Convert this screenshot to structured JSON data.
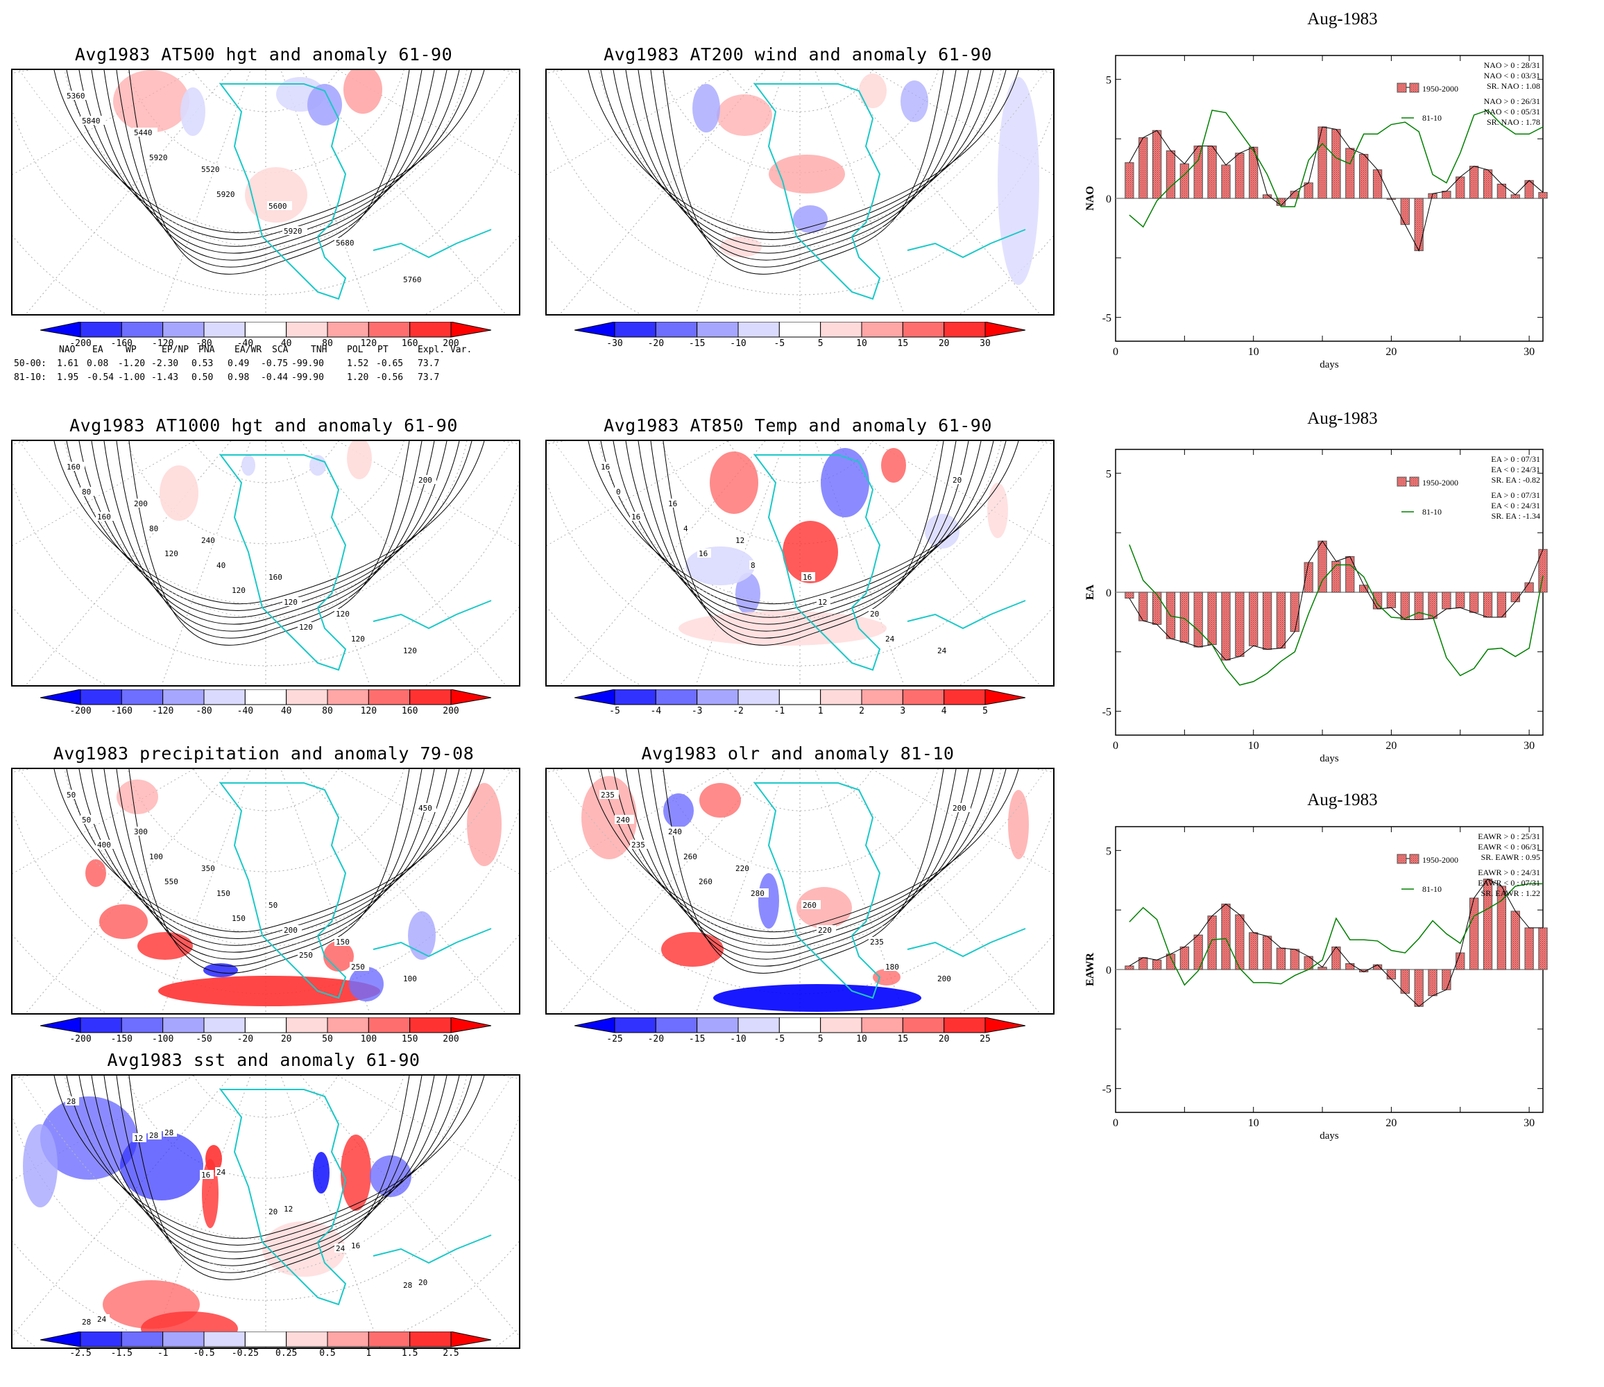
{
  "maps": [
    {
      "id": "z500",
      "title": "Avg1983 AT500 hgt and anomaly 61-90",
      "colorbar": [
        "-200",
        "-160",
        "-120",
        "-80",
        "-40",
        "40",
        "80",
        "120",
        "160",
        "200"
      ],
      "contour_labels": [
        "5360",
        "5440",
        "5520",
        "5600",
        "5680",
        "5760",
        "5840",
        "5920",
        "5920",
        "5920"
      ]
    },
    {
      "id": "wind200",
      "title": "Avg1983 AT200 wind and anomaly 61-90",
      "colorbar": [
        "-30",
        "-20",
        "-15",
        "-10",
        "-5",
        "5",
        "10",
        "15",
        "20",
        "30"
      ],
      "contour_labels": []
    },
    {
      "id": "z1000",
      "title": "Avg1983 AT1000 hgt and anomaly 61-90",
      "colorbar": [
        "-200",
        "-160",
        "-120",
        "-80",
        "-40",
        "40",
        "80",
        "120",
        "160",
        "200"
      ],
      "contour_labels": [
        "160",
        "200",
        "240",
        "160",
        "120",
        "120",
        "80",
        "80",
        "40",
        "120",
        "120",
        "200",
        "160",
        "120",
        "120",
        "120"
      ]
    },
    {
      "id": "t850",
      "title": "Avg1983 AT850 Temp and anomaly 61-90",
      "colorbar": [
        "-5",
        "-4",
        "-3",
        "-2",
        "-1",
        "1",
        "2",
        "3",
        "4",
        "5"
      ],
      "contour_labels": [
        "16",
        "16",
        "12",
        "16",
        "20",
        "24",
        "0",
        "4",
        "8",
        "12",
        "24",
        "20",
        "16",
        "16"
      ]
    },
    {
      "id": "precip",
      "title": "Avg1983 precipitation and anomaly 79-08",
      "colorbar": [
        "-200",
        "-150",
        "-100",
        "-50",
        "-20",
        "20",
        "50",
        "100",
        "150",
        "200"
      ],
      "contour_labels": [
        "50",
        "300",
        "350",
        "50",
        "150",
        "100",
        "50",
        "100",
        "150",
        "200",
        "250",
        "450",
        "400",
        "550",
        "150",
        "250"
      ]
    },
    {
      "id": "olr",
      "title": "Avg1983 olr and anomaly 81-10",
      "colorbar": [
        "-25",
        "-20",
        "-15",
        "-10",
        "-5",
        "5",
        "10",
        "15",
        "20",
        "25"
      ],
      "contour_labels": [
        "235",
        "240",
        "220",
        "260",
        "235",
        "200",
        "240",
        "260",
        "280",
        "220",
        "180",
        "200",
        "235",
        "260"
      ]
    },
    {
      "id": "sst",
      "title": "Avg1983 sst and anomaly 61-90",
      "colorbar": [
        "-2.5",
        "-1.5",
        "-1",
        "-0.5",
        "-0.25",
        "0.25",
        "0.5",
        "1",
        "1.5",
        "2.5"
      ],
      "contour_labels": [
        "28",
        "12",
        "16",
        "20",
        "24",
        "28",
        "28",
        "28",
        "24",
        "12",
        "16",
        "20",
        "24",
        "28"
      ]
    }
  ],
  "colorbar_colors": [
    "#0000ff",
    "#3232ff",
    "#6e6eff",
    "#a6a6ff",
    "#dadaff",
    "#ffffff",
    "#ffdada",
    "#ffa6a6",
    "#ff6e6e",
    "#ff3232",
    "#ff0000"
  ],
  "index_table": {
    "headers": [
      "NAO",
      "EA",
      "WP",
      "EP/NP",
      "PNA",
      "EA/WR",
      "SCA",
      "TNH",
      "POL",
      "PT",
      "Expl. Var."
    ],
    "rows": [
      {
        "label": "50-00:",
        "values": [
          "1.61",
          "0.08",
          "-1.20",
          "-2.30",
          "0.53",
          "0.49",
          "-0.75",
          "-99.90",
          "1.52",
          "-0.65",
          "73.7"
        ]
      },
      {
        "label": "81-10:",
        "values": [
          "1.95",
          "-0.54",
          "-1.00",
          "-1.43",
          "0.50",
          "0.98",
          "-0.44",
          "-99.90",
          "1.20",
          "-0.56",
          "73.7"
        ]
      }
    ]
  },
  "chart_data": [
    {
      "type": "bar",
      "title": "Aug-1983",
      "xlabel": "days",
      "ylabel": "NAO",
      "xlim": [
        0,
        31
      ],
      "ylim": [
        -6,
        6
      ],
      "xticks": [
        "0",
        "10",
        "20",
        "30"
      ],
      "yticks": [
        "5",
        "0",
        "-5"
      ],
      "x": [
        1,
        2,
        3,
        4,
        5,
        6,
        7,
        8,
        9,
        10,
        11,
        12,
        13,
        14,
        15,
        16,
        17,
        18,
        19,
        20,
        21,
        22,
        23,
        24,
        25,
        26,
        27,
        28,
        29,
        30,
        31
      ],
      "series": [
        {
          "name": "1950-2000",
          "kind": "bar",
          "values": [
            1.5,
            2.55,
            2.85,
            2.0,
            1.45,
            2.2,
            2.2,
            1.4,
            1.9,
            2.15,
            0.15,
            -0.3,
            0.3,
            0.65,
            3.0,
            2.9,
            2.1,
            1.85,
            1.2,
            0.0,
            -1.1,
            -2.2,
            0.2,
            0.3,
            0.9,
            1.35,
            1.2,
            0.6,
            0.15,
            0.75,
            0.25
          ]
        },
        {
          "name": "81-10",
          "kind": "line",
          "color": "#008000",
          "values": [
            -0.7,
            -1.2,
            -0.1,
            0.5,
            1.0,
            1.6,
            3.7,
            3.6,
            2.8,
            2.0,
            1.0,
            -0.35,
            -0.35,
            1.6,
            2.3,
            1.7,
            1.45,
            2.7,
            2.7,
            3.1,
            3.2,
            2.8,
            1.0,
            0.65,
            1.9,
            3.5,
            3.7,
            3.1,
            2.7,
            2.7,
            3.0
          ]
        }
      ],
      "legend": {
        "placement": "top-right",
        "bar_label": "1950-2000",
        "line_label": "81-10"
      },
      "stats": {
        "bar": [
          "NAO > 0 : 28/31",
          "NAO < 0 : 03/31",
          "SR. NAO :  1.08"
        ],
        "line": [
          "NAO > 0 : 26/31",
          "NAO < 0 : 05/31",
          "SR. NAO :  1.78"
        ]
      }
    },
    {
      "type": "bar",
      "title": "Aug-1983",
      "xlabel": "days",
      "ylabel": "EA",
      "xlim": [
        0,
        31
      ],
      "ylim": [
        -6,
        6
      ],
      "xticks": [
        "0",
        "10",
        "20",
        "30"
      ],
      "yticks": [
        "5",
        "0",
        "-5"
      ],
      "x": [
        1,
        2,
        3,
        4,
        5,
        6,
        7,
        8,
        9,
        10,
        11,
        12,
        13,
        14,
        15,
        16,
        17,
        18,
        19,
        20,
        21,
        22,
        23,
        24,
        25,
        26,
        27,
        28,
        29,
        30,
        31
      ],
      "series": [
        {
          "name": "1950-2000",
          "kind": "bar",
          "values": [
            -0.25,
            -1.2,
            -1.35,
            -1.95,
            -2.1,
            -2.3,
            -2.2,
            -2.85,
            -2.7,
            -2.25,
            -2.4,
            -2.35,
            -1.65,
            1.25,
            2.15,
            1.3,
            1.5,
            0.3,
            -0.7,
            -0.65,
            -1.15,
            -1.15,
            -1.1,
            -0.7,
            -0.65,
            -0.85,
            -1.05,
            -1.05,
            -0.4,
            0.4,
            1.8
          ]
        },
        {
          "name": "81-10",
          "kind": "line",
          "color": "#008000",
          "values": [
            2.0,
            0.5,
            -0.1,
            -1.0,
            -1.1,
            -1.6,
            -2.2,
            -3.2,
            -3.9,
            -3.75,
            -3.4,
            -2.9,
            -2.5,
            -0.9,
            0.5,
            1.15,
            1.15,
            0.65,
            -0.5,
            -1.05,
            -1.1,
            -0.85,
            -1.0,
            -2.75,
            -3.5,
            -3.2,
            -2.4,
            -2.35,
            -2.7,
            -2.35,
            0.7
          ]
        }
      ],
      "legend": {
        "placement": "top-right",
        "bar_label": "1950-2000",
        "line_label": "81-10"
      },
      "stats": {
        "bar": [
          "EA > 0 : 07/31",
          "EA < 0 : 24/31",
          "SR. EA : -0.82"
        ],
        "line": [
          "EA > 0 : 07/31",
          "EA < 0 : 24/31",
          "SR. EA : -1.34"
        ]
      }
    },
    {
      "type": "bar",
      "title": "Aug-1983",
      "xlabel": "days",
      "ylabel": "EAWR",
      "xlim": [
        0,
        31
      ],
      "ylim": [
        -6,
        6
      ],
      "xticks": [
        "0",
        "10",
        "20",
        "30"
      ],
      "yticks": [
        "5",
        "0",
        "-5"
      ],
      "x": [
        1,
        2,
        3,
        4,
        5,
        6,
        7,
        8,
        9,
        10,
        11,
        12,
        13,
        14,
        15,
        16,
        17,
        18,
        19,
        20,
        21,
        22,
        23,
        24,
        25,
        26,
        27,
        28,
        29,
        30,
        31
      ],
      "series": [
        {
          "name": "1950-2000",
          "kind": "bar",
          "values": [
            0.15,
            0.5,
            0.4,
            0.65,
            0.95,
            1.45,
            2.25,
            2.75,
            2.3,
            1.55,
            1.4,
            0.9,
            0.85,
            0.55,
            0.1,
            0.95,
            0.25,
            -0.1,
            0.2,
            -0.4,
            -1.0,
            -1.55,
            -1.1,
            -0.85,
            0.7,
            3.0,
            3.8,
            3.5,
            2.45,
            1.75,
            1.75
          ]
        },
        {
          "name": "81-10",
          "kind": "line",
          "color": "#008000",
          "values": [
            2.0,
            2.6,
            2.1,
            0.5,
            -0.65,
            -0.05,
            1.25,
            1.3,
            0.05,
            -0.55,
            -0.55,
            -0.6,
            -0.25,
            0.0,
            0.4,
            2.15,
            1.25,
            1.25,
            1.2,
            0.8,
            0.7,
            1.3,
            2.05,
            1.5,
            1.1,
            2.25,
            2.55,
            2.9,
            3.5,
            3.6,
            3.6
          ]
        }
      ],
      "legend": {
        "placement": "top-right",
        "bar_label": "1950-2000",
        "line_label": "81-10"
      },
      "stats": {
        "bar": [
          "EAWR > 0 : 25/31",
          "EAWR < 0 : 06/31",
          "SR. EAWR :  0.95"
        ],
        "line": [
          "EAWR > 0 : 24/31",
          "EAWR < 0 : 07/31",
          "SR. EAWR :  1.22"
        ]
      }
    }
  ]
}
